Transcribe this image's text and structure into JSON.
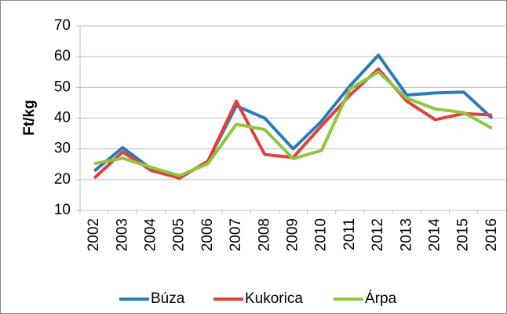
{
  "chart_data": {
    "type": "line",
    "y_label": "Ft/kg",
    "categories": [
      "2002",
      "2003",
      "2004",
      "2005",
      "2006",
      "2007",
      "2008",
      "2009",
      "2010",
      "2011",
      "2012",
      "2013",
      "2014",
      "2015",
      "2016"
    ],
    "series": [
      {
        "name": "Búza",
        "color": "#2b7bba",
        "values": [
          22.8,
          30.4,
          23.5,
          20.5,
          26,
          44,
          40,
          30,
          39,
          50.5,
          60.5,
          47.5,
          48.2,
          48.5,
          40
        ]
      },
      {
        "name": "Kukorica",
        "color": "#e0413a",
        "values": [
          20.5,
          29,
          23,
          20.5,
          26,
          45.5,
          28.2,
          27.2,
          37.5,
          47.5,
          56,
          45.5,
          39.5,
          41.5,
          41
        ]
      },
      {
        "name": "Árpa",
        "color": "#8dc63f",
        "values": [
          25.2,
          27,
          24,
          21.3,
          25.2,
          38,
          36.3,
          26.8,
          29.5,
          49.5,
          55,
          46.5,
          43,
          41.8,
          36.7
        ]
      }
    ],
    "ylim": [
      10,
      70
    ],
    "yticks": [
      10,
      20,
      30,
      40,
      50,
      60,
      70
    ],
    "grid": true,
    "legend": "bottom"
  }
}
